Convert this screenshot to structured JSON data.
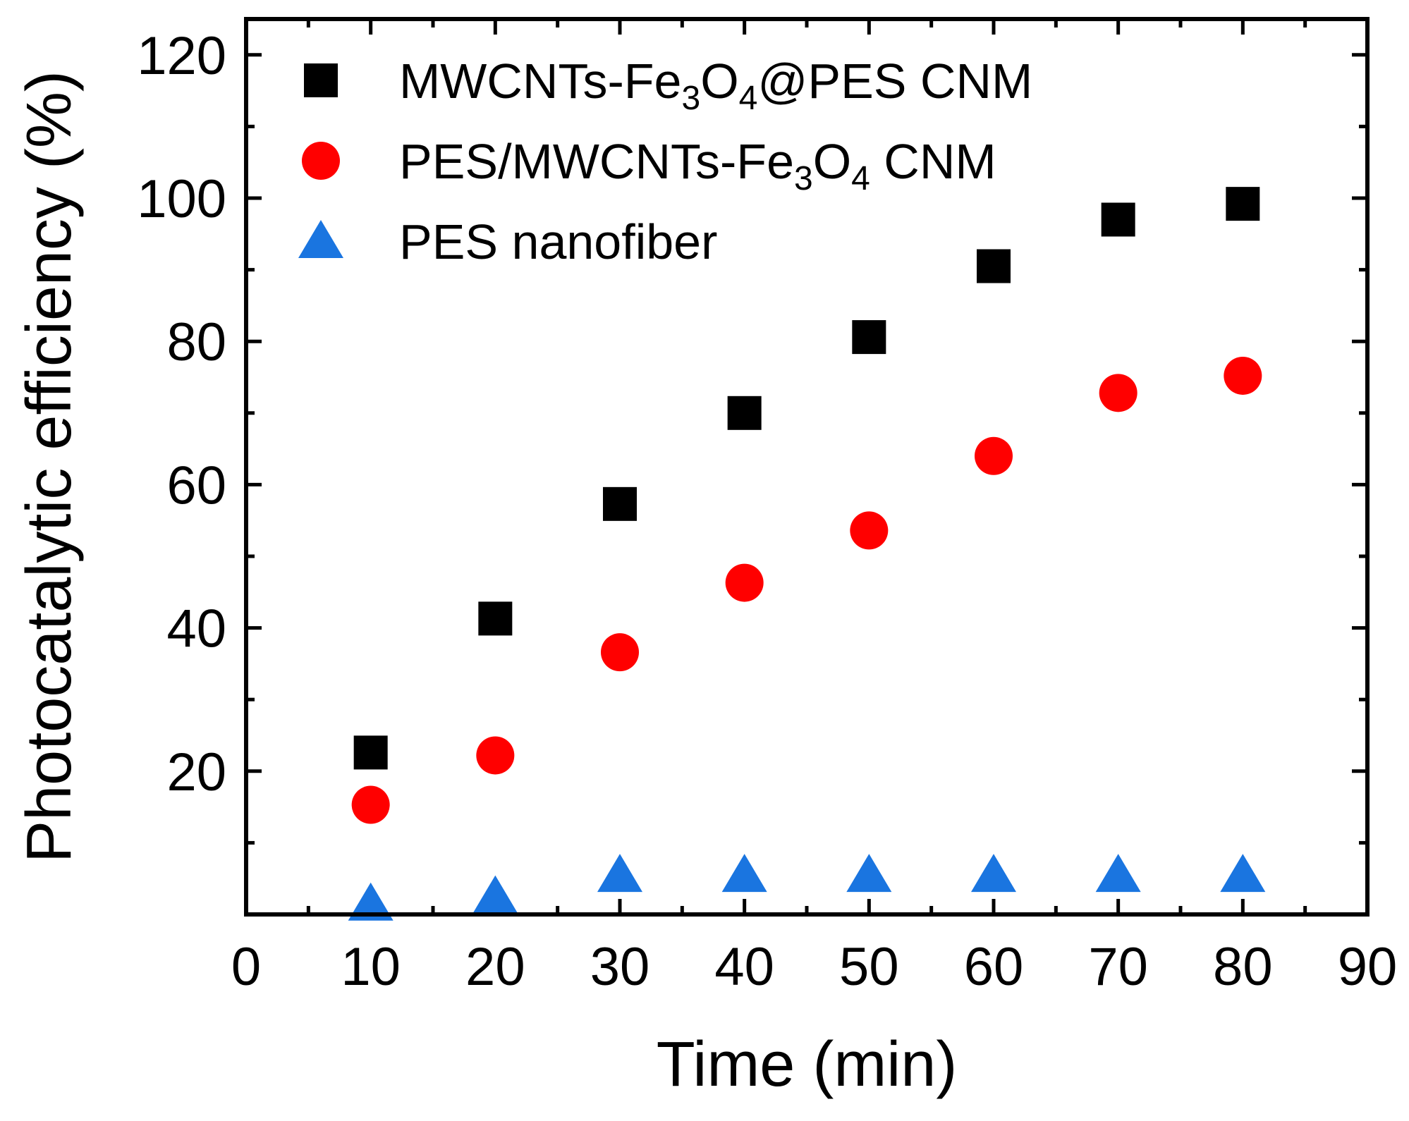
{
  "chart_data": {
    "type": "scatter",
    "title": "",
    "xlabel": "Time (min)",
    "ylabel": "Photocatalytic efficiency (%)",
    "xlim": [
      0,
      90
    ],
    "ylim": [
      0,
      125
    ],
    "x_ticks": [
      0,
      10,
      20,
      30,
      40,
      50,
      60,
      70,
      80,
      90
    ],
    "y_ticks": [
      20,
      40,
      60,
      80,
      100,
      120
    ],
    "legend_position": "top-left",
    "series": [
      {
        "name": "MWCNTs-Fe3O4@PES CNM",
        "legend_parts": [
          {
            "t": "MWCNTs-Fe"
          },
          {
            "t": "3",
            "sub": true
          },
          {
            "t": "O"
          },
          {
            "t": "4",
            "sub": true
          },
          {
            "t": "@PES CNM"
          }
        ],
        "marker": "square",
        "color": "#000000",
        "x": [
          10,
          20,
          30,
          40,
          50,
          60,
          70,
          80
        ],
        "y": [
          22.6,
          41.3,
          57.3,
          70,
          80.6,
          90.5,
          97,
          99.2
        ]
      },
      {
        "name": "PES/MWCNTs-Fe3O4 CNM",
        "legend_parts": [
          {
            "t": "PES/MWCNTs-Fe"
          },
          {
            "t": "3",
            "sub": true
          },
          {
            "t": "O"
          },
          {
            "t": "4",
            "sub": true
          },
          {
            "t": " CNM"
          }
        ],
        "marker": "circle",
        "color": "#ff0000",
        "x": [
          10,
          20,
          30,
          40,
          50,
          60,
          70,
          80
        ],
        "y": [
          15.3,
          22.2,
          36.6,
          46.3,
          53.6,
          64,
          72.8,
          75.2
        ]
      },
      {
        "name": "PES nanofiber",
        "legend_parts": [
          {
            "t": "PES nanofiber"
          }
        ],
        "marker": "triangle",
        "color": "#1a75e0",
        "x": [
          10,
          20,
          30,
          40,
          50,
          60,
          70,
          80
        ],
        "y": [
          1.5,
          2.5,
          5.5,
          5.5,
          5.5,
          5.5,
          5.5,
          5.5
        ]
      }
    ]
  }
}
